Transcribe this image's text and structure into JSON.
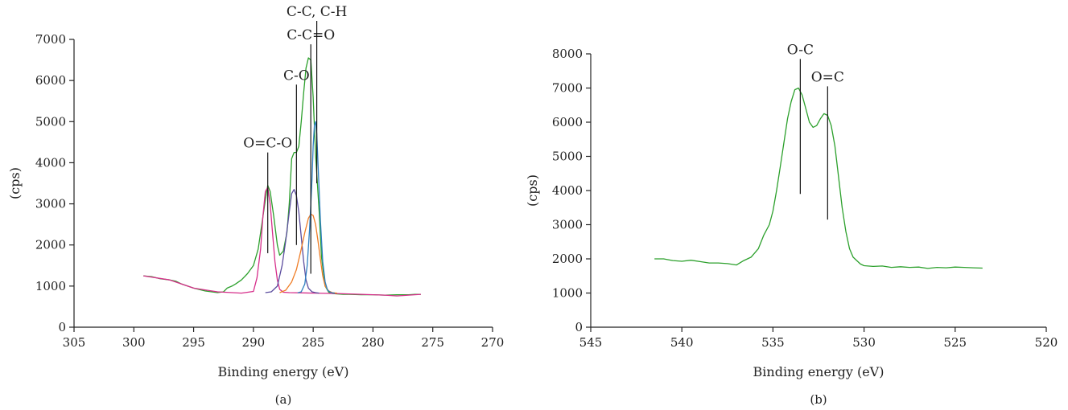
{
  "chart_data": [
    {
      "type": "line",
      "caption": "(a)",
      "xlabel": "Binding energy (eV)",
      "ylabel": "(cps)",
      "xlim": [
        305,
        270
      ],
      "ylim": [
        0,
        7000
      ],
      "xticks": [
        "305",
        "300",
        "295",
        "290",
        "285",
        "280",
        "275",
        "270"
      ],
      "yticks": [
        "0",
        "1000",
        "2000",
        "3000",
        "4000",
        "5000",
        "6000",
        "7000"
      ],
      "grid": false,
      "series": [
        {
          "color": "#2ca02c",
          "x": [
            299.2,
            298.5,
            297.8,
            297.0,
            296.5,
            296.0,
            295.0,
            294.0,
            293.0,
            292.5,
            292.2,
            291.8,
            291.5,
            291.0,
            290.5,
            290.0,
            289.6,
            289.3,
            289.0,
            288.8,
            288.6,
            288.3,
            288.0,
            287.8,
            287.5,
            287.2,
            287.0,
            286.8,
            286.6,
            286.4,
            286.2,
            286.0,
            285.8,
            285.6,
            285.4,
            285.2,
            285.0,
            284.8,
            284.5,
            284.3,
            284.0,
            283.7,
            283.4,
            283.0,
            282.5,
            282.0,
            281.0,
            280.0,
            279.0,
            278.0,
            277.0,
            276.5,
            276.0
          ],
          "y": [
            1250,
            1230,
            1180,
            1150,
            1120,
            1050,
            950,
            880,
            840,
            860,
            950,
            1000,
            1050,
            1150,
            1300,
            1500,
            1900,
            2500,
            3100,
            3450,
            3300,
            2700,
            2000,
            1750,
            1850,
            2300,
            3000,
            4100,
            4250,
            4250,
            4400,
            5000,
            5700,
            6300,
            6550,
            6500,
            5600,
            4200,
            2800,
            1700,
            1000,
            850,
            820,
            810,
            800,
            800,
            790,
            790,
            780,
            790,
            790,
            800,
            800
          ]
        },
        {
          "color": "#d62d8a",
          "x": [
            299.2,
            297.0,
            295.0,
            293.0,
            291.0,
            290.0,
            289.7,
            289.4,
            289.2,
            289.0,
            288.8,
            288.6,
            288.4,
            288.2,
            288.0,
            287.8,
            287.5,
            287.0,
            285.0,
            283.0,
            281.0,
            279.0,
            278.0,
            277.0,
            276.0
          ],
          "y": [
            1250,
            1150,
            950,
            860,
            830,
            870,
            1200,
            1900,
            2700,
            3300,
            3400,
            3000,
            2300,
            1600,
            1150,
            920,
            850,
            840,
            830,
            820,
            800,
            780,
            760,
            780,
            800
          ]
        },
        {
          "color": "#5b4c9e",
          "x": [
            289.0,
            288.5,
            288.0,
            287.6,
            287.3,
            287.0,
            286.8,
            286.6,
            286.4,
            286.2,
            286.0,
            285.8,
            285.6,
            285.4,
            285.1,
            284.8,
            284.5
          ],
          "y": [
            840,
            860,
            1000,
            1500,
            2100,
            2800,
            3250,
            3350,
            3200,
            2800,
            2200,
            1600,
            1150,
            950,
            860,
            840,
            830
          ]
        },
        {
          "color": "#ef7d26",
          "x": [
            287.8,
            287.3,
            286.8,
            286.4,
            286.0,
            285.7,
            285.4,
            285.2,
            285.0,
            284.8,
            284.6,
            284.4,
            284.2,
            284.0,
            283.7,
            283.4,
            283.0
          ],
          "y": [
            840,
            900,
            1100,
            1400,
            1900,
            2300,
            2650,
            2750,
            2720,
            2500,
            2100,
            1650,
            1250,
            1000,
            880,
            840,
            830
          ]
        },
        {
          "color": "#2f7fc1",
          "x": [
            286.3,
            286.0,
            285.7,
            285.5,
            285.3,
            285.1,
            285.0,
            284.9,
            284.8,
            284.7,
            284.6,
            284.4,
            284.2,
            284.0,
            283.8,
            283.5,
            283.2
          ],
          "y": [
            835,
            860,
            1050,
            1500,
            2400,
            3600,
            4400,
            4900,
            5000,
            4700,
            4000,
            2600,
            1600,
            1100,
            900,
            840,
            830
          ]
        }
      ],
      "annotations": [
        {
          "text": "O=C-O",
          "x": 288.8,
          "ytop": 4250,
          "ybot": 1800
        },
        {
          "text": "C-O",
          "x": 286.4,
          "ytop": 5900,
          "ybot": 2000
        },
        {
          "text": "C-C=O",
          "x": 285.2,
          "ytop": 6880,
          "ybot": 1300
        },
        {
          "text": "C-C, C-H",
          "x": 284.7,
          "ytop": 7450,
          "ybot": 3500
        }
      ]
    },
    {
      "type": "line",
      "caption": "(b)",
      "xlabel": "Binding energy (eV)",
      "ylabel": "(cps)",
      "xlim": [
        545,
        520
      ],
      "ylim": [
        0,
        8000
      ],
      "xticks": [
        "545",
        "540",
        "535",
        "530",
        "525",
        "520"
      ],
      "yticks": [
        "0",
        "1000",
        "2000",
        "3000",
        "4000",
        "5000",
        "6000",
        "7000",
        "8000"
      ],
      "grid": false,
      "series": [
        {
          "color": "#2ca02c",
          "x": [
            541.5,
            541.0,
            540.5,
            540.0,
            539.5,
            539.0,
            538.5,
            538.0,
            537.5,
            537.0,
            536.6,
            536.2,
            535.8,
            535.5,
            535.2,
            535.0,
            534.8,
            534.6,
            534.4,
            534.2,
            534.0,
            533.8,
            533.6,
            533.4,
            533.2,
            533.0,
            532.8,
            532.6,
            532.4,
            532.2,
            532.0,
            531.8,
            531.6,
            531.4,
            531.2,
            531.0,
            530.8,
            530.6,
            530.4,
            530.2,
            530.0,
            529.5,
            529.0,
            528.5,
            528.0,
            527.5,
            527.0,
            526.5,
            526.0,
            525.5,
            525.0,
            524.5,
            524.0,
            523.5
          ],
          "y": [
            2000,
            2000,
            1950,
            1930,
            1960,
            1920,
            1880,
            1880,
            1860,
            1820,
            1950,
            2050,
            2300,
            2700,
            3000,
            3400,
            4000,
            4700,
            5400,
            6100,
            6600,
            6950,
            7000,
            6800,
            6400,
            6000,
            5850,
            5900,
            6100,
            6250,
            6200,
            5900,
            5300,
            4400,
            3500,
            2800,
            2300,
            2050,
            1950,
            1850,
            1800,
            1780,
            1790,
            1750,
            1770,
            1750,
            1760,
            1720,
            1750,
            1740,
            1760,
            1750,
            1740,
            1730
          ]
        }
      ],
      "annotations": [
        {
          "text": "O-C",
          "x": 533.5,
          "ytop": 7850,
          "ybot": 3900
        },
        {
          "text": "O=C",
          "x": 532.0,
          "ytop": 7050,
          "ybot": 3150
        }
      ]
    }
  ]
}
